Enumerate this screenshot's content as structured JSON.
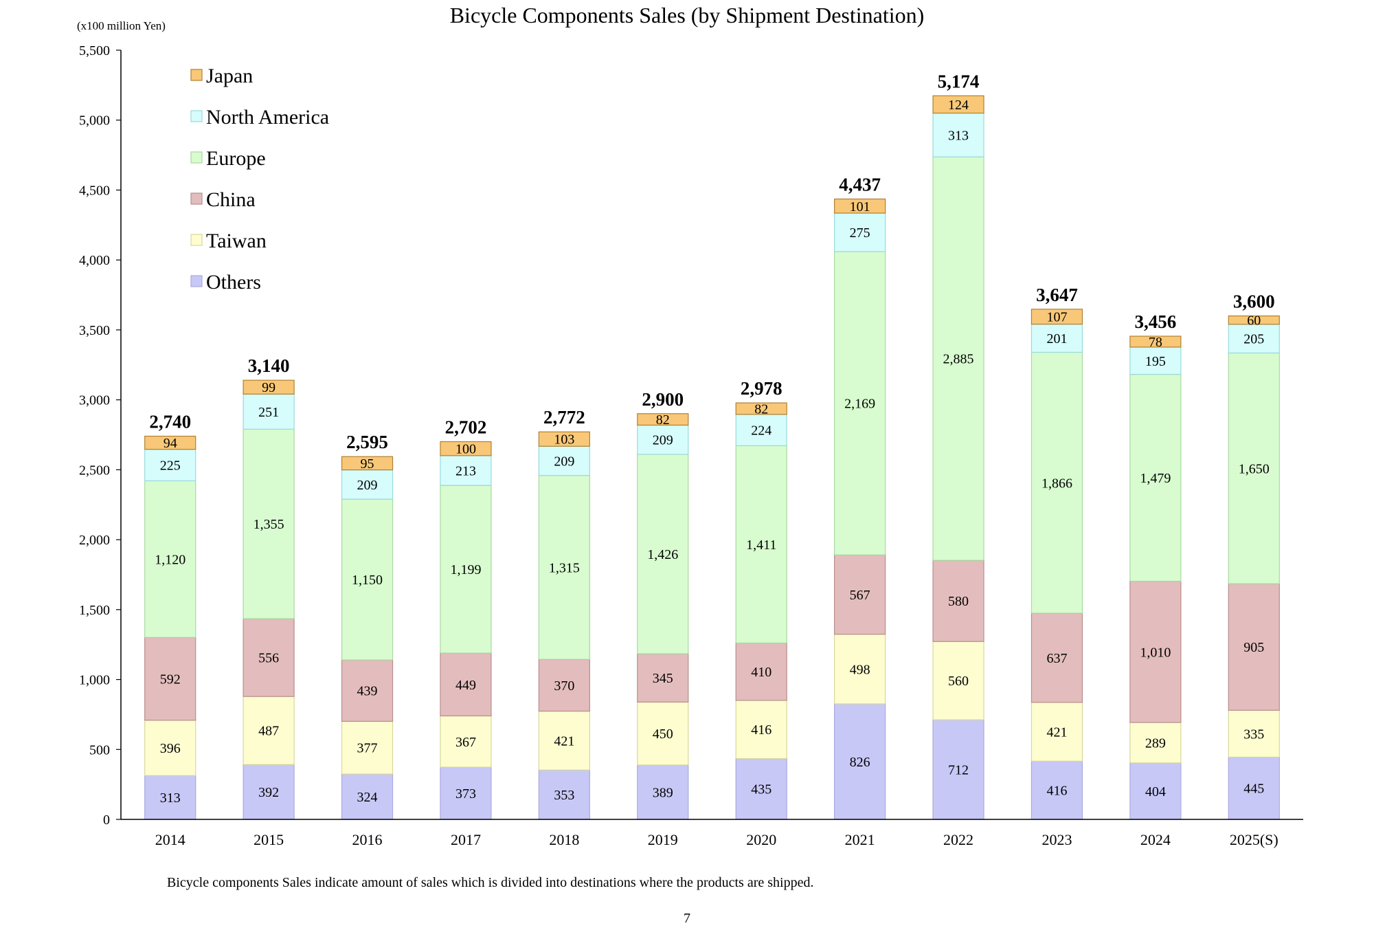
{
  "chart_data": {
    "type": "bar",
    "stacked": true,
    "title": "Bicycle Components Sales (by Shipment Destination)",
    "unit_label": "(x100 million Yen)",
    "xlabel": "",
    "ylabel": "",
    "ylim": [
      0,
      5500
    ],
    "yticks": [
      0,
      500,
      1000,
      1500,
      2000,
      2500,
      3000,
      3500,
      4000,
      4500,
      5000,
      5500
    ],
    "ytick_labels": [
      "0",
      "500",
      "1,000",
      "1,500",
      "2,000",
      "2,500",
      "3,000",
      "3,500",
      "4,000",
      "4,500",
      "5,000",
      "5,500"
    ],
    "grid": false,
    "legend_position": "top-left",
    "categories": [
      "2014",
      "2015",
      "2016",
      "2017",
      "2018",
      "2019",
      "2020",
      "2021",
      "2022",
      "2023",
      "2024",
      "2025(S)"
    ],
    "series": [
      {
        "name": "Others",
        "color": "#c8c8f7",
        "border": "#a9a9e0",
        "values": [
          313,
          392,
          324,
          373,
          353,
          389,
          435,
          826,
          712,
          416,
          404,
          445
        ],
        "labels": [
          "313",
          "392",
          "324",
          "373",
          "353",
          "389",
          "435",
          "826",
          "712",
          "416",
          "404",
          "445"
        ]
      },
      {
        "name": "Taiwan",
        "color": "#fdfdd0",
        "border": "#d8d89a",
        "values": [
          396,
          487,
          377,
          367,
          421,
          450,
          416,
          498,
          560,
          421,
          289,
          335
        ],
        "labels": [
          "396",
          "487",
          "377",
          "367",
          "421",
          "450",
          "416",
          "498",
          "560",
          "421",
          "289",
          "335"
        ]
      },
      {
        "name": "China",
        "color": "#e3bdbd",
        "border": "#b88c8c",
        "values": [
          592,
          556,
          439,
          449,
          370,
          345,
          410,
          567,
          580,
          637,
          1010,
          905
        ],
        "labels": [
          "592",
          "556",
          "439",
          "449",
          "370",
          "345",
          "410",
          "567",
          "580",
          "637",
          "1,010",
          "905"
        ]
      },
      {
        "name": "Europe",
        "color": "#d8fcd0",
        "border": "#aad8a0",
        "values": [
          1120,
          1355,
          1150,
          1199,
          1315,
          1426,
          1411,
          2169,
          2885,
          1866,
          1479,
          1650
        ],
        "labels": [
          "1,120",
          "1,355",
          "1,150",
          "1,199",
          "1,315",
          "1,426",
          "1,411",
          "2,169",
          "2,885",
          "1,866",
          "1,479",
          "1,650"
        ]
      },
      {
        "name": "North America",
        "color": "#d6fcfc",
        "border": "#9adada",
        "values": [
          225,
          251,
          209,
          213,
          209,
          209,
          224,
          275,
          313,
          201,
          195,
          205
        ],
        "labels": [
          "225",
          "251",
          "209",
          "213",
          "209",
          "209",
          "224",
          "275",
          "313",
          "201",
          "195",
          "205"
        ]
      },
      {
        "name": "Japan",
        "color": "#f8c878",
        "border": "#b08030",
        "values": [
          94,
          99,
          95,
          100,
          103,
          82,
          82,
          101,
          124,
          107,
          78,
          60
        ],
        "labels": [
          "94",
          "99",
          "95",
          "100",
          "103",
          "82",
          "82",
          "101",
          "124",
          "107",
          "78",
          "60"
        ]
      }
    ],
    "legend_order": [
      "Japan",
      "North America",
      "Europe",
      "China",
      "Taiwan",
      "Others"
    ],
    "totals": [
      2740,
      3140,
      2595,
      2702,
      2772,
      2900,
      2978,
      4437,
      5174,
      3647,
      3456,
      3600
    ],
    "total_labels": [
      "2,740",
      "3,140",
      "2,595",
      "2,702",
      "2,772",
      "2,900",
      "2,978",
      "4,437",
      "5,174",
      "3,647",
      "3,456",
      "3,600"
    ]
  },
  "footnote": "Bicycle components Sales indicate amount of sales which is divided into destinations where the products are shipped.",
  "page_number": "7"
}
